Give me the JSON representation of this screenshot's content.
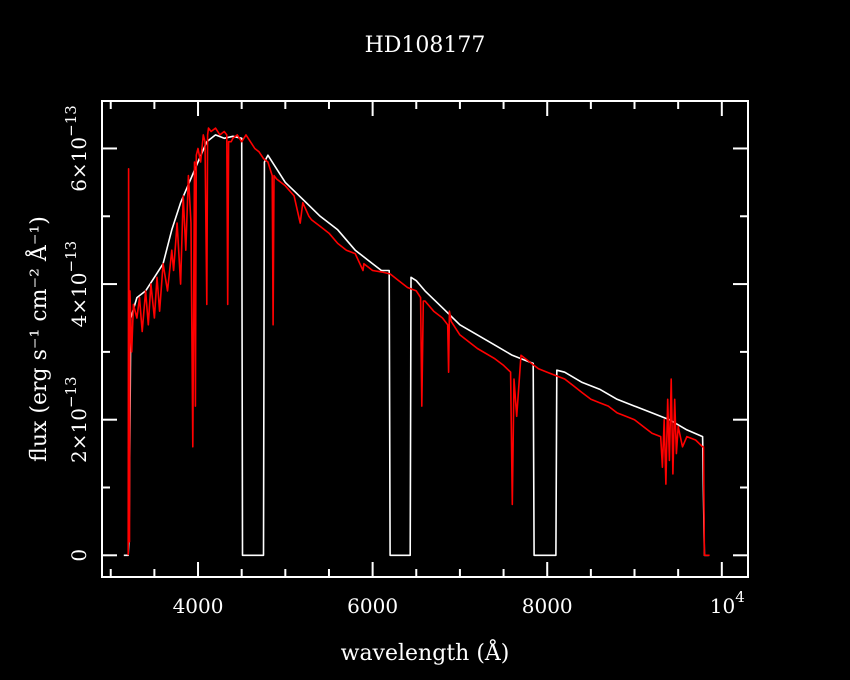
{
  "chart_data": {
    "type": "line",
    "title": "HD108177",
    "xlabel": "wavelength (Å)",
    "ylabel": "flux (erg s⁻¹ cm⁻² Å⁻¹)",
    "xlim": [
      2900,
      10300
    ],
    "ylim": [
      -3.2e-14,
      6.7e-13
    ],
    "x_ticks": [
      {
        "value": 4000,
        "label": "4000"
      },
      {
        "value": 6000,
        "label": "6000"
      },
      {
        "value": 8000,
        "label": "8000"
      },
      {
        "value": 10000,
        "label": "10",
        "exponent": "4"
      }
    ],
    "y_ticks": [
      {
        "value": 0,
        "label": "0"
      },
      {
        "value": 2e-13,
        "label": "2×10",
        "exponent": "−13"
      },
      {
        "value": 4e-13,
        "label": "4×10",
        "exponent": "−13"
      },
      {
        "value": 6e-13,
        "label": "6×10",
        "exponent": "−13"
      }
    ],
    "series": [
      {
        "color": "#ffffff",
        "x": [
          3150,
          3200,
          3210,
          3230,
          3300,
          3400,
          3500,
          3600,
          3700,
          3800,
          3900,
          4000,
          4100,
          4200,
          4300,
          4400,
          4500,
          4510,
          4520,
          4740,
          4750,
          4760,
          4800,
          4900,
          5000,
          5200,
          5400,
          5600,
          5800,
          6000,
          6100,
          6190,
          6200,
          6210,
          6420,
          6430,
          6440,
          6500,
          6600,
          6800,
          7000,
          7200,
          7400,
          7600,
          7800,
          7840,
          7850,
          7860,
          8090,
          8100,
          8110,
          8200,
          8400,
          8600,
          8800,
          9000,
          9200,
          9400,
          9600,
          9780,
          9800,
          9850
        ],
        "y": [
          0,
          0,
          3e-14,
          3.5e-13,
          3.8e-13,
          3.9e-13,
          4.1e-13,
          4.3e-13,
          4.8e-13,
          5.2e-13,
          5.5e-13,
          5.8e-13,
          6.1e-13,
          6.2e-13,
          6.15e-13,
          6.18e-13,
          6.15e-13,
          0,
          0,
          0,
          0,
          5.8e-13,
          5.9e-13,
          5.7e-13,
          5.5e-13,
          5.25e-13,
          5e-13,
          4.8e-13,
          4.5e-13,
          4.3e-13,
          4.2e-13,
          4.2e-13,
          0,
          0,
          0,
          0,
          4.1e-13,
          4.05e-13,
          3.9e-13,
          3.65e-13,
          3.4e-13,
          3.25e-13,
          3.1e-13,
          2.95e-13,
          2.85e-13,
          2.83e-13,
          0,
          0,
          0,
          0,
          2.73e-13,
          2.7e-13,
          2.55e-13,
          2.45e-13,
          2.3e-13,
          2.2e-13,
          2.1e-13,
          2e-13,
          1.85e-13,
          1.75e-13,
          0,
          0
        ]
      },
      {
        "color": "#ff0000",
        "x": [
          3200,
          3205,
          3215,
          3220,
          3240,
          3260,
          3300,
          3330,
          3360,
          3400,
          3430,
          3460,
          3500,
          3530,
          3560,
          3600,
          3650,
          3700,
          3720,
          3760,
          3800,
          3830,
          3860,
          3890,
          3920,
          3940,
          3960,
          3970,
          3980,
          4000,
          4030,
          4060,
          4080,
          4100,
          4110,
          4120,
          4150,
          4200,
          4250,
          4300,
          4330,
          4340,
          4350,
          4380,
          4400,
          4450,
          4500,
          4550,
          4600,
          4650,
          4700,
          4750,
          4800,
          4850,
          4860,
          4870,
          4900,
          5000,
          5100,
          5170,
          5200,
          5270,
          5300,
          5400,
          5500,
          5600,
          5700,
          5800,
          5890,
          5900,
          6000,
          6100,
          6200,
          6300,
          6400,
          6500,
          6550,
          6563,
          6580,
          6600,
          6700,
          6800,
          6860,
          6870,
          6880,
          6900,
          7000,
          7200,
          7400,
          7500,
          7580,
          7600,
          7620,
          7650,
          7700,
          7800,
          7900,
          8000,
          8100,
          8200,
          8300,
          8400,
          8500,
          8600,
          8700,
          8800,
          8900,
          9000,
          9100,
          9200,
          9300,
          9320,
          9340,
          9360,
          9380,
          9400,
          9420,
          9440,
          9460,
          9480,
          9500,
          9550,
          9600,
          9700,
          9780,
          9790,
          9800,
          9860
        ],
        "y": [
          0,
          5.7e-13,
          2e-14,
          3.9e-13,
          3e-13,
          3.7e-13,
          3.5e-13,
          3.8e-13,
          3.3e-13,
          3.9e-13,
          3.4e-13,
          4e-13,
          3.5e-13,
          4.1e-13,
          3.6e-13,
          4.3e-13,
          3.9e-13,
          4.5e-13,
          4.2e-13,
          4.9e-13,
          4e-13,
          5.3e-13,
          4.5e-13,
          5.6e-13,
          4.9e-13,
          1.6e-13,
          5.8e-13,
          2.2e-13,
          5.9e-13,
          6e-13,
          5.8e-13,
          6.2e-13,
          6.1e-13,
          3.7e-13,
          6.2e-13,
          6.3e-13,
          6.25e-13,
          6.3e-13,
          6.2e-13,
          6.25e-13,
          6.2e-13,
          3.7e-13,
          6.1e-13,
          6.1e-13,
          6.15e-13,
          6.2e-13,
          6.1e-13,
          6.2e-13,
          6.1e-13,
          6e-13,
          5.95e-13,
          5.85e-13,
          5.8e-13,
          5.6e-13,
          3.4e-13,
          5.6e-13,
          5.55e-13,
          5.45e-13,
          5.3e-13,
          4.9e-13,
          5.2e-13,
          5e-13,
          4.95e-13,
          4.85e-13,
          4.75e-13,
          4.6e-13,
          4.5e-13,
          4.45e-13,
          4.2e-13,
          4.3e-13,
          4.2e-13,
          4.18e-13,
          4.15e-13,
          4.05e-13,
          3.95e-13,
          3.9e-13,
          3.8e-13,
          2.2e-13,
          3.75e-13,
          3.75e-13,
          3.6e-13,
          3.5e-13,
          3.4e-13,
          2.7e-13,
          3.6e-13,
          3.45e-13,
          3.25e-13,
          3.05e-13,
          2.9e-13,
          2.8e-13,
          2.7e-13,
          7.5e-14,
          2.6e-13,
          2.05e-13,
          2.95e-13,
          2.85e-13,
          2.75e-13,
          2.7e-13,
          2.65e-13,
          2.6e-13,
          2.5e-13,
          2.4e-13,
          2.3e-13,
          2.25e-13,
          2.2e-13,
          2.1e-13,
          2.05e-13,
          2e-13,
          1.9e-13,
          1.8e-13,
          1.75e-13,
          1.3e-13,
          2e-13,
          1.05e-13,
          2.3e-13,
          1.4e-13,
          2.6e-13,
          1.2e-13,
          2.3e-13,
          1.5e-13,
          1.9e-13,
          1.6e-13,
          1.75e-13,
          1.7e-13,
          1.6e-13,
          1.6e-13,
          0,
          0
        ]
      }
    ]
  }
}
